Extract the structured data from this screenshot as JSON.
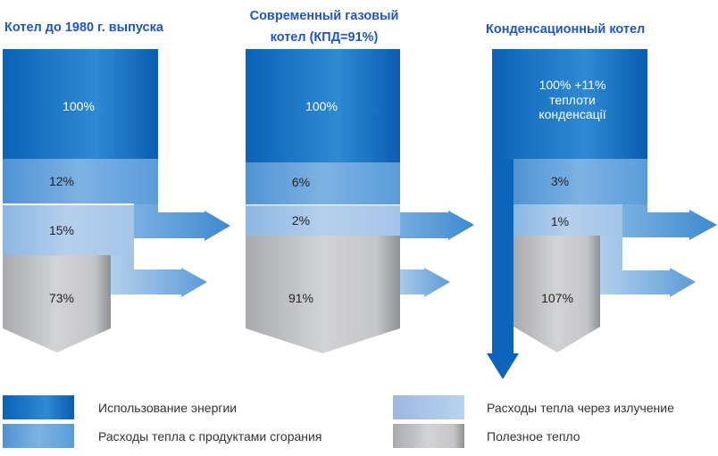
{
  "colors": {
    "energy": "#0b62b8",
    "flue_loss": "#5d9fdb",
    "radiation_loss": "#a9c8e8",
    "useful_heat": "#b9babd",
    "title": "#1f56c3"
  },
  "panels": [
    {
      "title": [
        "Котел до 1980 г. выпуска"
      ],
      "energy": "100%",
      "flue_loss": "12%",
      "radiation_loss": "15%",
      "useful_heat": "73%"
    },
    {
      "title": [
        "Современный газовый",
        "котел (КПД=91%)"
      ],
      "energy": "100%",
      "flue_loss": "6%",
      "radiation_loss": "2%",
      "useful_heat": "91%"
    },
    {
      "title": [
        "Конденсационный котел"
      ],
      "energy": [
        "100% +11%",
        "теплоти",
        "конденсації"
      ],
      "flue_loss": "3%",
      "radiation_loss": "1%",
      "useful_heat": "107%"
    }
  ],
  "legend": [
    {
      "label": "Использование энергии"
    },
    {
      "label": "Расходы тепла с продуктами сгорания"
    },
    {
      "label": "Расходы тепла через излучение"
    },
    {
      "label": "Полезное тепло"
    }
  ]
}
